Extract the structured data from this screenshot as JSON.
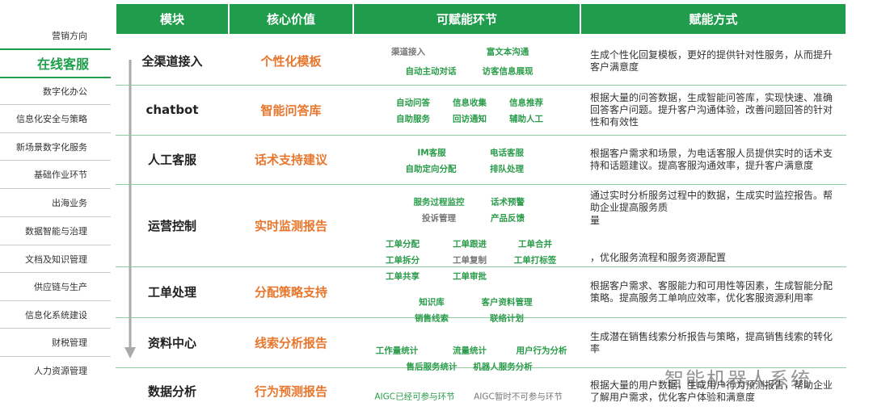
{
  "sidebar": {
    "items": [
      "营销方向",
      "在线客服",
      "数字化办公",
      "信息化安全与策略",
      "新场景数字化服务",
      "基础作业环节",
      "出海业务",
      "数据智能与治理",
      "文档及知识管理",
      "供应链与生产",
      "信息化系统建设",
      "财税管理",
      "人力资源管理"
    ],
    "active": 1
  },
  "table": {
    "headers": [
      "模块",
      "核心价值",
      "可赋能环节",
      "赋能方式"
    ],
    "rows": [
      {
        "module": "全渠道接入",
        "value": "个性化模板",
        "description": [
          "生成个性化回复模板，更好的提供针对性服务，从而提升客户满意度"
        ]
      },
      {
        "module": "chatbot",
        "value": "智能问答库",
        "description": [
          "根据大量的问答数据，生成智能问答库，实现快速、准确回答客户问题。提升客户沟通体验，改善问题回答的针对性和有效性"
        ]
      },
      {
        "module": "人工客服",
        "value": "话术支持建议",
        "description": [
          "根据客户需求和场景，为电话客服人员提供实时的话术支持和话题建议。提高客服沟通效率，提升客户满意度"
        ]
      },
      {
        "module": "运营控制",
        "value": "实时监测报告",
        "description": [
          "通过实时分析服务过程中的数据，生成实时监控报告。帮助企业提高服务质",
          "量",
          "，优化服务流程和服务资源配置"
        ]
      },
      {
        "module": "工单处理",
        "value": "分配策略支持",
        "description": [
          "根据客户需求、客服能力和可用性等因素，生成智能分配策略。提高服务工单响应效率，优化客服资源利用率"
        ]
      },
      {
        "module": "资料中心",
        "value": "线索分析报告",
        "description": [
          "生成潜在销售线索分析报告与策略，提高销售线索的转化率"
        ]
      },
      {
        "module": "数据分析",
        "value": "行为预测报告",
        "description": [
          "根据大量的用户数据，生成用户行为预测报告，帮助企业了解用户需求，优化客户体验和满意度"
        ]
      }
    ],
    "tags": [
      {
        "label": "渠道接入",
        "color": "#777777"
      },
      {
        "label": "富文本沟通",
        "color": "#2a9c4a"
      },
      {
        "label": "自动主动对话",
        "color": "#2a9c4a"
      },
      {
        "label": "访客信息展现",
        "color": "#2a9c4a"
      },
      {
        "label": "自动问答",
        "color": "#2a9c4a"
      },
      {
        "label": "信息收集",
        "color": "#2a9c4a"
      },
      {
        "label": "信息推荐",
        "color": "#2a9c4a"
      },
      {
        "label": "自助服务",
        "color": "#2a9c4a"
      },
      {
        "label": "回访通知",
        "color": "#2a9c4a"
      },
      {
        "label": "辅助人工",
        "color": "#2a9c4a"
      },
      {
        "label": "IM客服",
        "color": "#2a9c4a"
      },
      {
        "label": "电话客服",
        "color": "#2a9c4a"
      },
      {
        "label": "自助定向分配",
        "color": "#2a9c4a"
      },
      {
        "label": "排队处理",
        "color": "#2a9c4a"
      },
      {
        "label": "服务过程监控",
        "color": "#2a9c4a"
      },
      {
        "label": "话术预警",
        "color": "#2a9c4a"
      },
      {
        "label": "投诉管理",
        "color": "#777777"
      },
      {
        "label": "产品反馈",
        "color": "#2a9c4a"
      },
      {
        "label": "工单分配",
        "color": "#2a9c4a"
      },
      {
        "label": "工单跟进",
        "color": "#2a9c4a"
      },
      {
        "label": "工单合并",
        "color": "#2a9c4a"
      },
      {
        "label": "工单拆分",
        "color": "#2a9c4a"
      },
      {
        "label": "工单复制",
        "color": "#777777"
      },
      {
        "label": "工单打标签",
        "color": "#2a9c4a"
      },
      {
        "label": "工单共享",
        "color": "#2a9c4a"
      },
      {
        "label": "工单审批",
        "color": "#2a9c4a"
      },
      {
        "label": "知识库",
        "color": "#2a9c4a"
      },
      {
        "label": "客户资料管理",
        "color": "#2a9c4a"
      },
      {
        "label": "销售线索",
        "color": "#2a9c4a"
      },
      {
        "label": "联络计划",
        "color": "#2a9c4a"
      },
      {
        "label": "工作量统计",
        "color": "#2a9c4a"
      },
      {
        "label": "流量统计",
        "color": "#2a9c4a"
      },
      {
        "label": "用户行为分析",
        "color": "#2a9c4a"
      },
      {
        "label": "售后服务统计",
        "color": "#2a9c4a"
      },
      {
        "label": "机器人服务分析",
        "color": "#2a9c4a"
      }
    ],
    "legend": [
      {
        "label": "AIGC已经可参与环节",
        "color": "#2a9c4a"
      },
      {
        "label": "AIGC暂时不可参与环节",
        "color": "#777777"
      }
    ]
  },
  "watermark": "智能机器人系统"
}
